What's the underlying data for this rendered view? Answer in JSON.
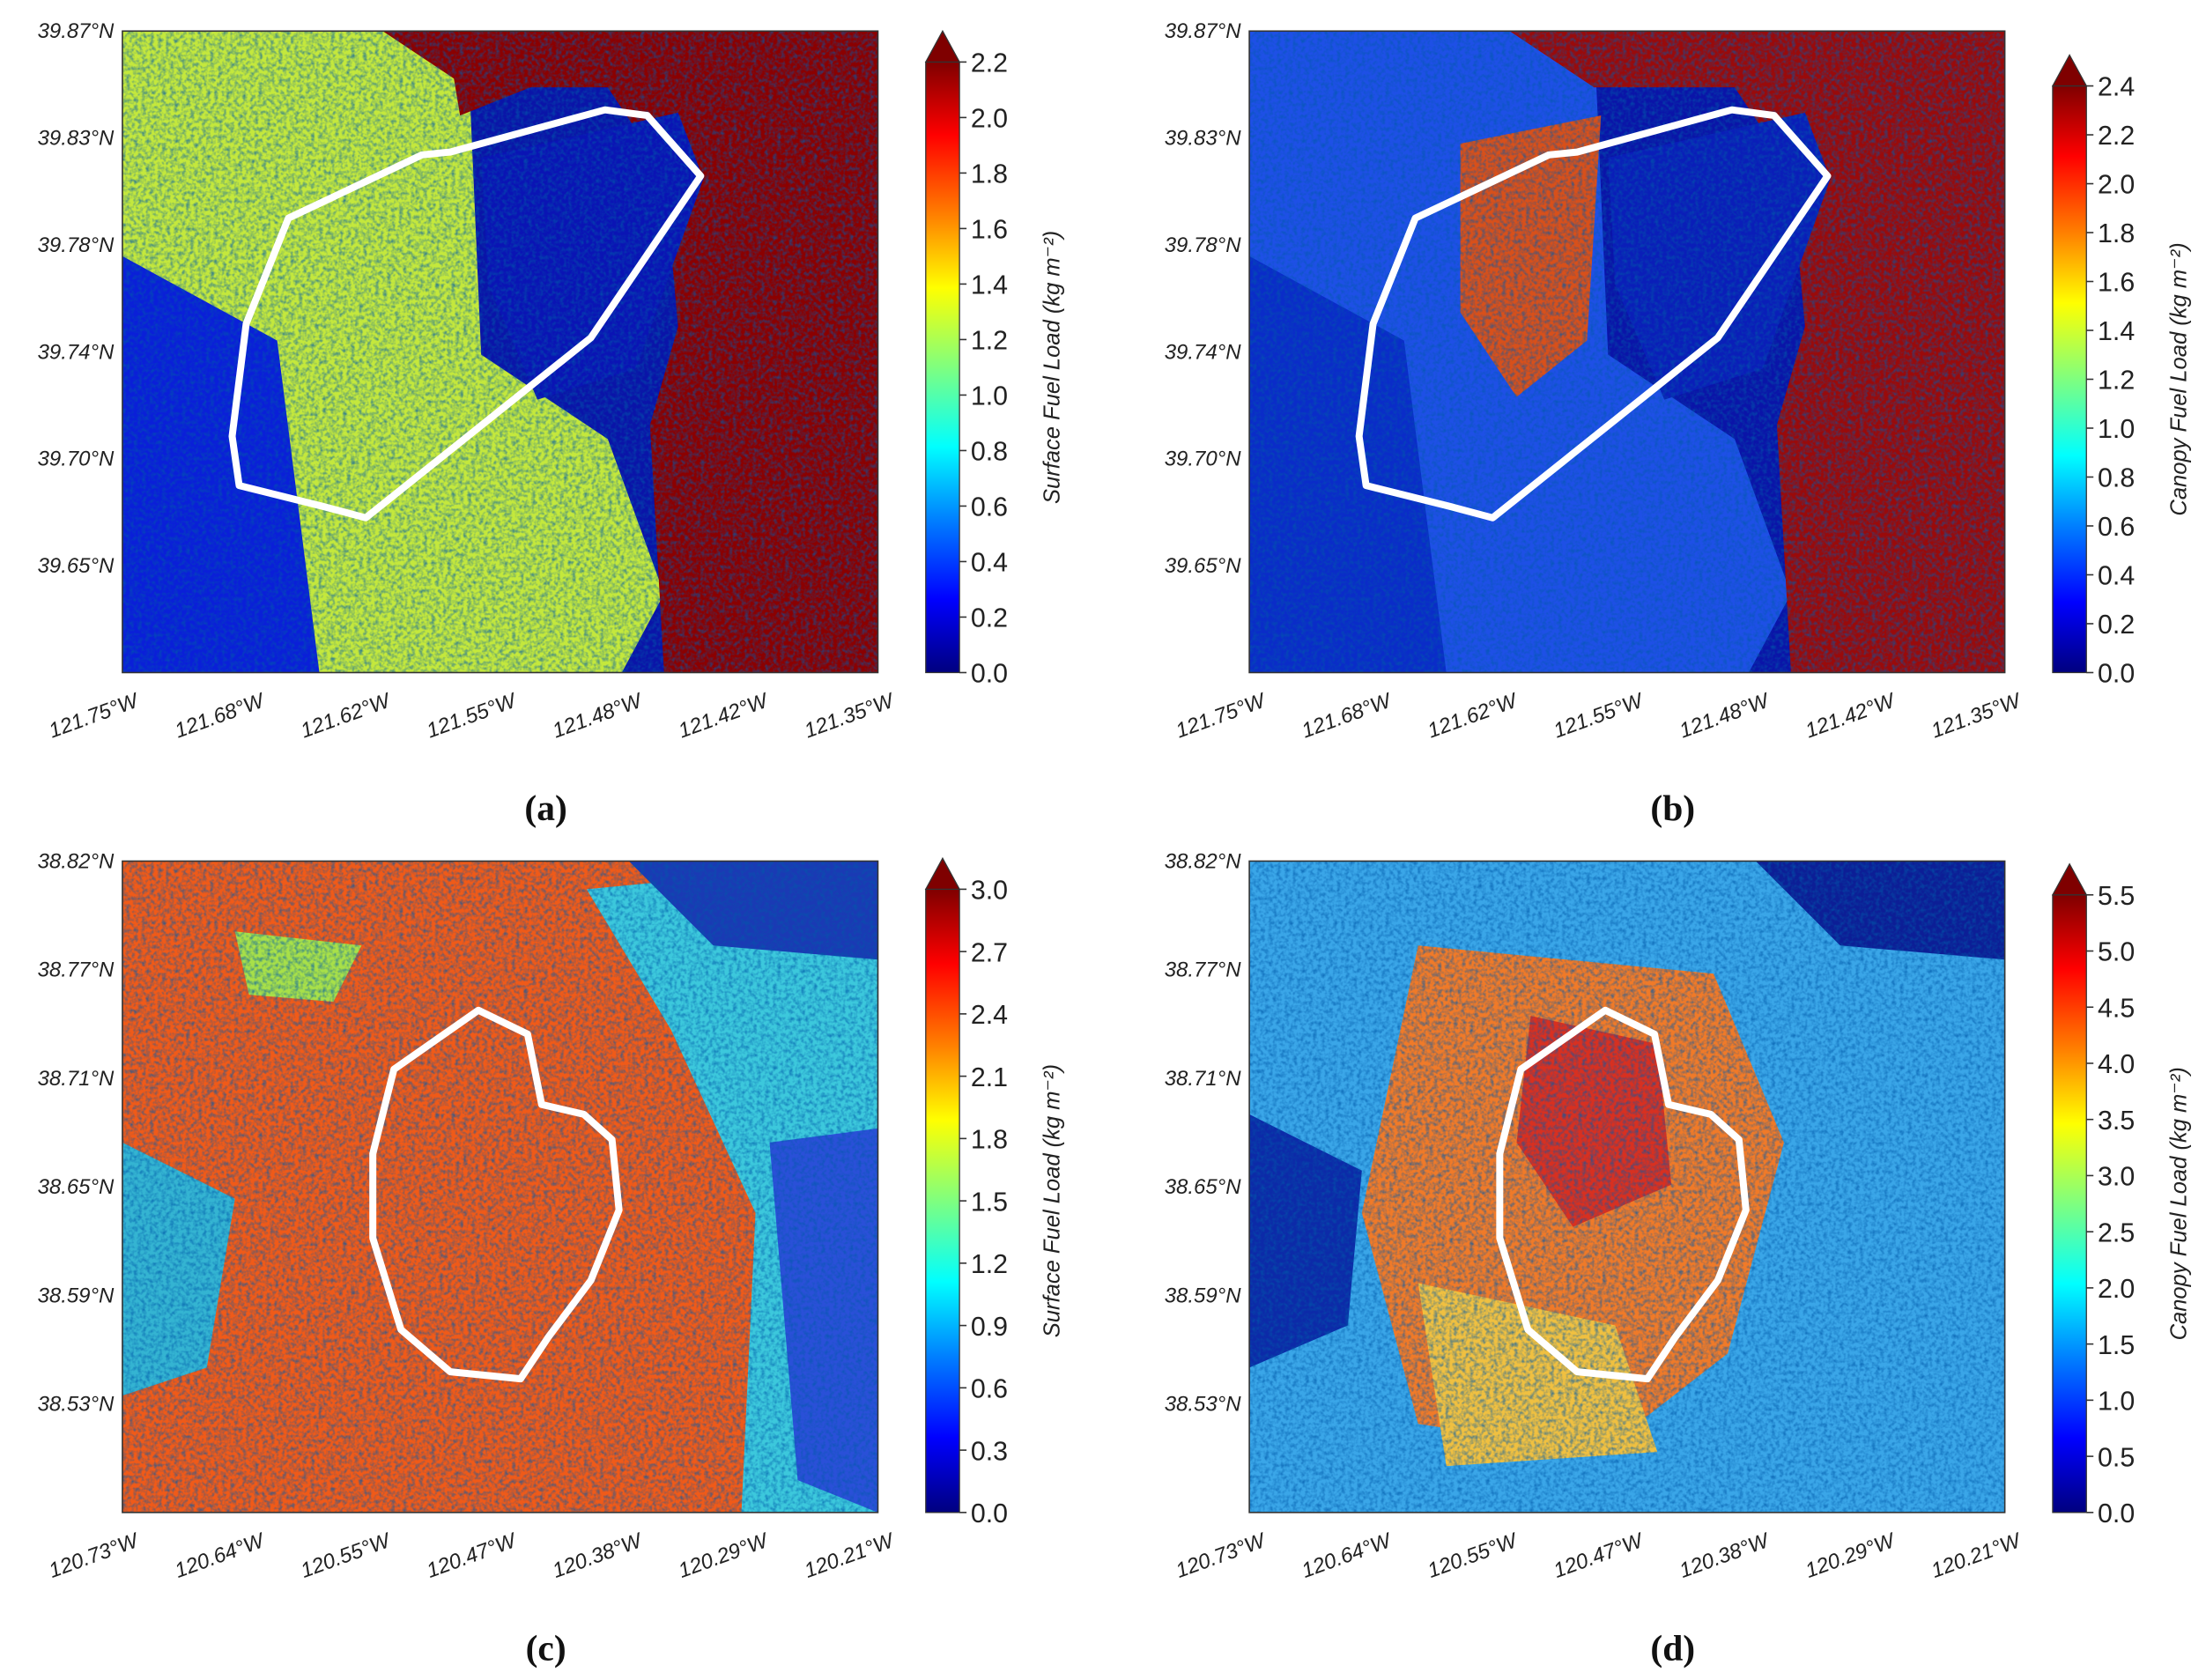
{
  "panels": [
    {
      "label": "(a)",
      "latitude_ticks": [
        "39.87°N",
        "39.83°N",
        "39.78°N",
        "39.74°N",
        "39.70°N",
        "39.65°N"
      ],
      "longitude_ticks": [
        "121.75°W",
        "121.68°W",
        "121.62°W",
        "121.55°W",
        "121.48°W",
        "121.42°W",
        "121.35°W"
      ],
      "colorbar": {
        "label": "Surface Fuel Load (kg m⁻²)",
        "range": [
          0,
          2.2
        ],
        "ticks": [
          {
            "value": 0,
            "label": "0.0"
          },
          0.2,
          0.4,
          0.6,
          0.8,
          {
            "value": 1,
            "label": "1.0"
          },
          1.2,
          1.4,
          1.6,
          1.8,
          {
            "value": 2,
            "label": "2.0"
          },
          2.2
        ]
      }
    },
    {
      "label": "(b)",
      "latitude_ticks": [
        "39.87°N",
        "39.83°N",
        "39.78°N",
        "39.74°N",
        "39.70°N",
        "39.65°N"
      ],
      "longitude_ticks": [
        "121.75°W",
        "121.68°W",
        "121.62°W",
        "121.55°W",
        "121.48°W",
        "121.42°W",
        "121.35°W"
      ],
      "colorbar": {
        "label": "Canopy Fuel Load (kg m⁻²)",
        "range": [
          0,
          2.4
        ],
        "ticks": [
          {
            "value": 0,
            "label": "0.0"
          },
          0.2,
          0.4,
          0.6,
          0.8,
          {
            "value": 1,
            "label": "1.0"
          },
          1.2,
          1.4,
          1.6,
          1.8,
          {
            "value": 2,
            "label": "2.0"
          },
          2.2,
          2.4
        ]
      }
    },
    {
      "label": "(c)",
      "latitude_ticks": [
        "38.82°N",
        "38.77°N",
        "38.71°N",
        "38.65°N",
        "38.59°N",
        "38.53°N"
      ],
      "longitude_ticks": [
        "120.73°W",
        "120.64°W",
        "120.55°W",
        "120.47°W",
        "120.38°W",
        "120.29°W",
        "120.21°W"
      ],
      "colorbar": {
        "label": "Surface Fuel Load (kg m⁻²)",
        "range": [
          0,
          3
        ],
        "ticks": [
          {
            "value": 0,
            "label": "0.0"
          },
          0.3,
          0.6,
          0.9,
          1.2,
          1.5,
          1.8,
          2.1,
          2.4,
          2.7,
          {
            "value": 3,
            "label": "3.0"
          }
        ]
      }
    },
    {
      "label": "(d)",
      "latitude_ticks": [
        "38.82°N",
        "38.77°N",
        "38.71°N",
        "38.65°N",
        "38.59°N",
        "38.53°N"
      ],
      "longitude_ticks": [
        "120.73°W",
        "120.64°W",
        "120.55°W",
        "120.47°W",
        "120.38°W",
        "120.29°W",
        "120.21°W"
      ],
      "colorbar": {
        "label": "Canopy Fuel Load (kg m⁻²)",
        "range": [
          0,
          5.5
        ],
        "ticks": [
          {
            "value": 0,
            "label": "0.0"
          },
          0.5,
          {
            "value": 1,
            "label": "1.0"
          },
          1.5,
          {
            "value": 2,
            "label": "2.0"
          },
          2.5,
          {
            "value": 3,
            "label": "3.0"
          },
          3.5,
          {
            "value": 4,
            "label": "4.0"
          },
          4.5,
          {
            "value": 5,
            "label": "5.0"
          },
          5.5
        ]
      }
    }
  ]
}
